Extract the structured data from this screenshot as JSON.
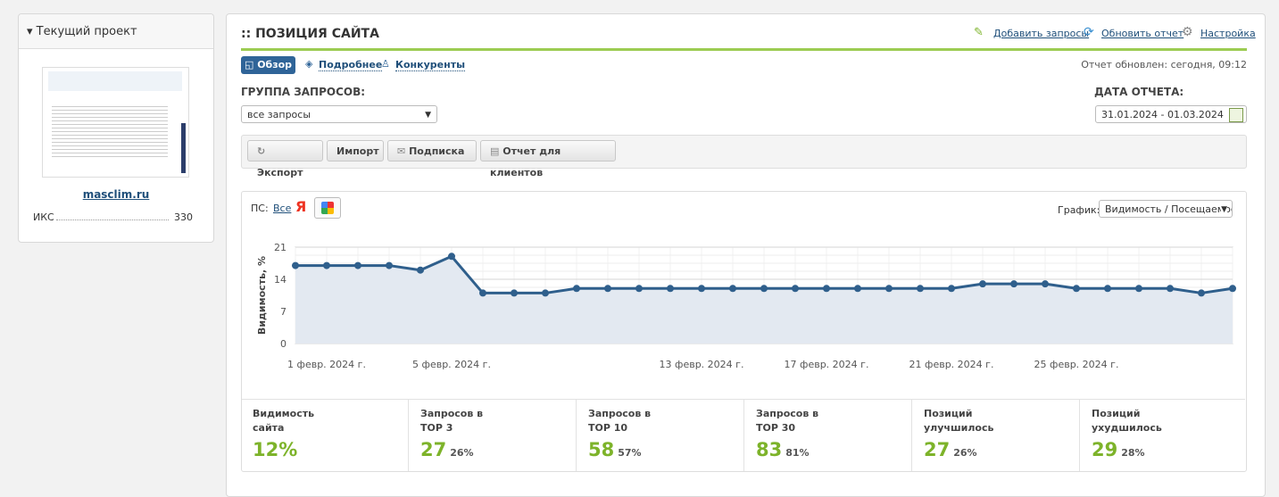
{
  "sidebar": {
    "title": "Текущий проект",
    "site": "masclim.ru",
    "metric_label": "ИКС",
    "metric_value": "330"
  },
  "header": {
    "title": ":: ПОЗИЦИЯ САЙТА",
    "links": [
      "Добавить запросы",
      "Обновить отчет",
      "Настройка"
    ]
  },
  "tabs": [
    "Обзор",
    "Подробнее",
    "Конкуренты"
  ],
  "updated": "Отчет обновлен: сегодня, 09:12",
  "filters": {
    "group_label": "ГРУППА ЗАПРОСОВ:",
    "group_value": "все запросы",
    "date_label": "ДАТА ОТЧЕТА:",
    "date_value": "31.01.2024 - 01.03.2024"
  },
  "buttons": [
    "Экспорт",
    "Импорт",
    "Подписка",
    "Отчет для клиентов"
  ],
  "chart_controls": {
    "ps_label": "ПС:",
    "ps_all": "Все",
    "ps_yandex": "Я",
    "graph_label": "График:",
    "graph_value": "Видимость / Посещаемость"
  },
  "chart_data": {
    "type": "line",
    "y_label": "Видимость, %",
    "categories": [
      null,
      "1 февр. 2024 г.",
      null,
      null,
      null,
      "5 февр. 2024 г.",
      null,
      null,
      null,
      null,
      null,
      null,
      null,
      "13 февр. 2024 г.",
      null,
      null,
      null,
      "17 февр. 2024 г.",
      null,
      null,
      null,
      "21 февр. 2024 г.",
      null,
      null,
      null,
      "25 февр. 2024 г.",
      null,
      null,
      null,
      null,
      null
    ],
    "values": [
      17,
      17,
      17,
      17,
      16,
      19,
      11,
      11,
      11,
      12,
      12,
      12,
      12,
      12,
      12,
      12,
      12,
      12,
      12,
      12,
      12,
      12,
      13,
      13,
      13,
      12,
      12,
      12,
      12,
      11,
      12
    ],
    "color": "#2f5f8c",
    "ylim": [
      0,
      21
    ],
    "yticks": [
      0,
      7,
      14,
      21
    ],
    "grid": true
  },
  "stats": [
    {
      "label": [
        "Видимость",
        "сайта"
      ],
      "value": "12%"
    },
    {
      "label": [
        "Запросов в",
        "TOP 3"
      ],
      "value": "27",
      "share": "26%"
    },
    {
      "label": [
        "Запросов в",
        "TOP 10"
      ],
      "value": "58",
      "share": "57%"
    },
    {
      "label": [
        "Запросов в",
        "TOP 30"
      ],
      "value": "83",
      "share": "81%"
    },
    {
      "label": [
        "Позиций",
        "улучшилось"
      ],
      "value": "27",
      "share": "26%"
    },
    {
      "label": [
        "Позиций",
        "ухудшилось"
      ],
      "value": "29",
      "share": "28%"
    }
  ]
}
